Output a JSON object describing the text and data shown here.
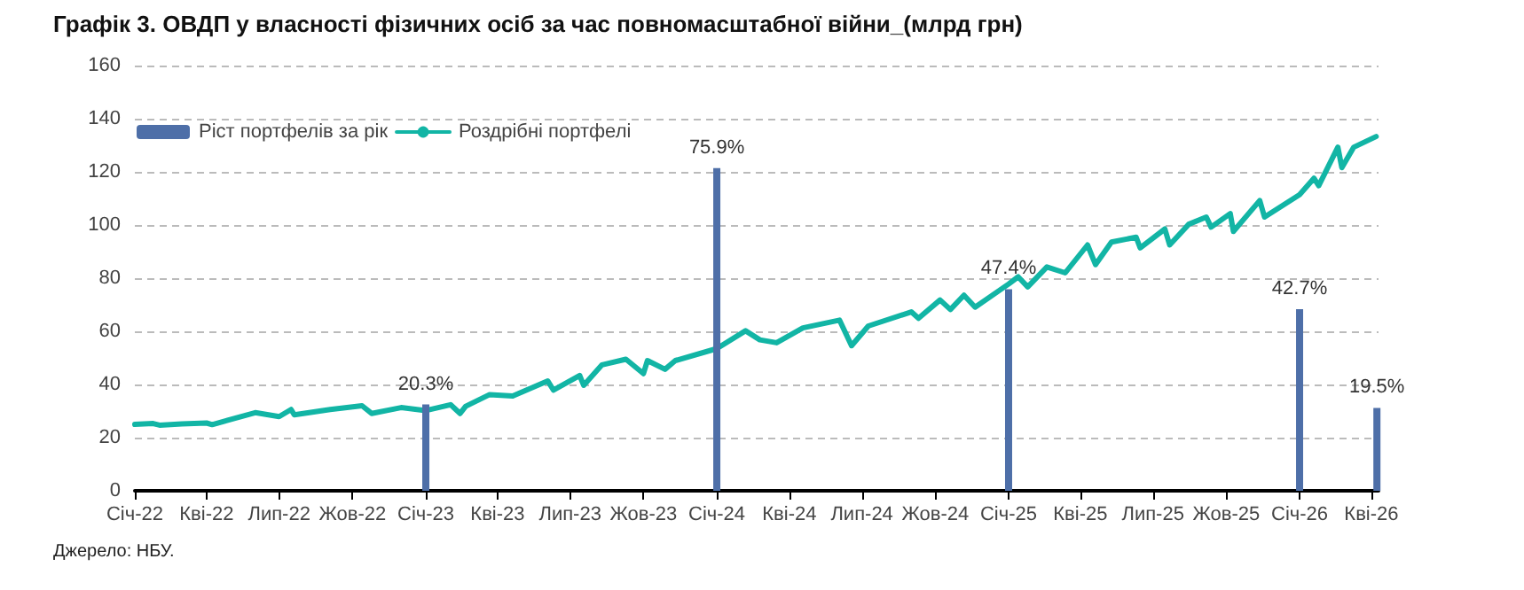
{
  "chart_data": {
    "type": "line",
    "title": "Графік 3. ОВДП у власності фізичних осіб за час повномасштабної війни_(млрд грн)",
    "annotations": [
      "Джерело: НБУ."
    ],
    "xlim": [
      "2022-01-01",
      "2026-04-10"
    ],
    "xticks": [
      {
        "value": "2022-01-01",
        "label": "Січ-22"
      },
      {
        "value": "2022-04-01",
        "label": "Кві-22"
      },
      {
        "value": "2022-07-01",
        "label": "Лип-22"
      },
      {
        "value": "2022-10-01",
        "label": "Жов-22"
      },
      {
        "value": "2023-01-01",
        "label": "Січ-23"
      },
      {
        "value": "2023-04-01",
        "label": "Кві-23"
      },
      {
        "value": "2023-07-01",
        "label": "Лип-23"
      },
      {
        "value": "2023-10-01",
        "label": "Жов-23"
      },
      {
        "value": "2024-01-01",
        "label": "Січ-24"
      },
      {
        "value": "2024-04-01",
        "label": "Кві-24"
      },
      {
        "value": "2024-07-01",
        "label": "Лип-24"
      },
      {
        "value": "2024-10-01",
        "label": "Жов-24"
      },
      {
        "value": "2025-01-01",
        "label": "Січ-25"
      },
      {
        "value": "2025-04-01",
        "label": "Кві-25"
      },
      {
        "value": "2025-07-01",
        "label": "Лип-25"
      },
      {
        "value": "2025-10-01",
        "label": "Жов-25"
      },
      {
        "value": "2026-01-01",
        "label": "Січ-26"
      },
      {
        "value": "2026-04-01",
        "label": "Кві-26"
      }
    ],
    "ylim": [
      0,
      160
    ],
    "yticks": [
      0,
      20,
      40,
      60,
      80,
      100,
      120,
      140,
      160
    ],
    "y2lim": [
      0,
      100
    ],
    "tick_labels": "xy",
    "grid": "y",
    "legend": "top left",
    "line_style": "solid",
    "marker": "none",
    "series": [
      {
        "name": "Ріст портфелів за рік",
        "type": "bar",
        "axis": "y2",
        "color": "#4e6fa8",
        "x": [
          "2023-01-01",
          "2024-01-01",
          "2025-01-01",
          "2026-01-01",
          "2026-04-08"
        ],
        "values": [
          20.3,
          75.9,
          47.4,
          42.7,
          19.5
        ],
        "value_labels": [
          "20.3%",
          "75.9%",
          "47.4%",
          "42.7%",
          "19.5%"
        ]
      },
      {
        "name": "Роздрібні портфелі",
        "color": "#12b5a5",
        "x": [
          "2022-01-01",
          "2022-01-24",
          "2022-02-01",
          "2022-03-01",
          "2022-04-01",
          "2022-04-08",
          "2022-06-01",
          "2022-07-01",
          "2022-07-16",
          "2022-07-20",
          "2022-09-03",
          "2022-10-13",
          "2022-10-25",
          "2022-12-01",
          "2023-01-01",
          "2023-02-01",
          "2023-02-13",
          "2023-02-20",
          "2023-03-22",
          "2023-04-20",
          "2023-06-03",
          "2023-06-10",
          "2023-07-13",
          "2023-07-18",
          "2023-08-10",
          "2023-09-09",
          "2023-10-01",
          "2023-10-06",
          "2023-10-28",
          "2023-11-10",
          "2024-01-01",
          "2024-02-06",
          "2024-02-24",
          "2024-03-16",
          "2024-04-18",
          "2024-06-03",
          "2024-06-18",
          "2024-07-09",
          "2024-09-01",
          "2024-09-10",
          "2024-10-07",
          "2024-10-20",
          "2024-11-06",
          "2024-11-20",
          "2025-01-01",
          "2025-01-13",
          "2025-01-25",
          "2025-02-18",
          "2025-03-13",
          "2025-04-10",
          "2025-04-20",
          "2025-05-10",
          "2025-06-10",
          "2025-06-15",
          "2025-07-16",
          "2025-07-22",
          "2025-08-15",
          "2025-09-06",
          "2025-09-12",
          "2025-10-06",
          "2025-10-10",
          "2025-11-12",
          "2025-11-18",
          "2026-01-01",
          "2026-01-19",
          "2026-01-25",
          "2026-02-18",
          "2026-02-23",
          "2026-03-10",
          "2026-04-07"
        ],
        "values": [
          25.0,
          25.3,
          24.7,
          25.2,
          25.5,
          24.9,
          29.4,
          27.9,
          30.6,
          28.6,
          30.6,
          32.0,
          29.1,
          31.3,
          30.2,
          32.4,
          29.1,
          31.8,
          36.2,
          35.7,
          41.3,
          37.9,
          43.4,
          39.7,
          47.4,
          49.5,
          44.1,
          49.0,
          45.7,
          49.0,
          53.5,
          60.2,
          56.8,
          55.7,
          61.3,
          64.2,
          54.6,
          62.0,
          67.3,
          64.9,
          71.8,
          68.2,
          73.6,
          69.1,
          77.8,
          80.5,
          76.7,
          84.2,
          82.0,
          92.5,
          85.1,
          93.6,
          95.4,
          91.4,
          98.5,
          92.5,
          100.3,
          103.0,
          99.2,
          104.3,
          97.6,
          109.2,
          103.0,
          111.4,
          117.6,
          114.8,
          129.3,
          121.6,
          129.3,
          133.3
        ]
      }
    ]
  }
}
